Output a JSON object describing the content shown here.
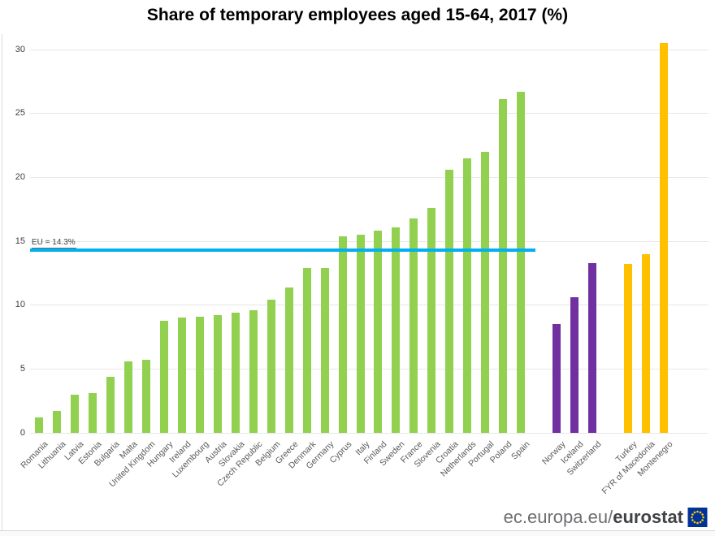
{
  "title": "Share of temporary employees aged 15-64, 2017 (%)",
  "chart_data": {
    "type": "bar",
    "ylim": [
      0,
      30
    ],
    "yticks": [
      0,
      5,
      10,
      15,
      20,
      25,
      30
    ],
    "grid": true,
    "reference_line": {
      "label": "EU = 14.3%",
      "value": 14.3,
      "color": "#00b0f0"
    },
    "groups": [
      {
        "key": "green-group",
        "color": "#92d050",
        "items": [
          {
            "label": "Romania",
            "value": 1.2
          },
          {
            "label": "Lithuania",
            "value": 1.7
          },
          {
            "label": "Latvia",
            "value": 3.0
          },
          {
            "label": "Estonia",
            "value": 3.1
          },
          {
            "label": "Bulgaria",
            "value": 4.4
          },
          {
            "label": "Malta",
            "value": 5.6
          },
          {
            "label": "United Kingdom",
            "value": 5.7
          },
          {
            "label": "Hungary",
            "value": 8.8
          },
          {
            "label": "Ireland",
            "value": 9.0
          },
          {
            "label": "Luxembourg",
            "value": 9.1
          },
          {
            "label": "Austria",
            "value": 9.2
          },
          {
            "label": "Slovakia",
            "value": 9.4
          },
          {
            "label": "Czech Republic",
            "value": 9.6
          },
          {
            "label": "Belgium",
            "value": 10.4
          },
          {
            "label": "Greece",
            "value": 11.4
          },
          {
            "label": "Denmark",
            "value": 12.9
          },
          {
            "label": "Germany",
            "value": 12.9
          },
          {
            "label": "Cyprus",
            "value": 15.4
          },
          {
            "label": "Italy",
            "value": 15.5
          },
          {
            "label": "Finland",
            "value": 15.8
          },
          {
            "label": "Sweden",
            "value": 16.1
          },
          {
            "label": "France",
            "value": 16.8
          },
          {
            "label": "Slovenia",
            "value": 17.6
          },
          {
            "label": "Croatia",
            "value": 20.6
          },
          {
            "label": "Netherlands",
            "value": 21.5
          },
          {
            "label": "Portugal",
            "value": 22.0
          },
          {
            "label": "Poland",
            "value": 26.1
          },
          {
            "label": "Spain",
            "value": 26.7
          }
        ]
      },
      {
        "key": "purple-group",
        "color": "#7030a0",
        "items": [
          {
            "label": "Norway",
            "value": 8.5
          },
          {
            "label": "Iceland",
            "value": 10.6
          },
          {
            "label": "Switzerland",
            "value": 13.3
          }
        ]
      },
      {
        "key": "orange-group",
        "color": "#ffc000",
        "items": [
          {
            "label": "Turkey",
            "value": 13.2
          },
          {
            "label": "FYR of Macedonia",
            "value": 14.0
          },
          {
            "label": "Montenegro",
            "value": 30.5
          }
        ]
      }
    ]
  },
  "footer": {
    "logo_prefix": "ec.europa.eu/",
    "logo_bold": "eurostat"
  },
  "colors": {
    "green_bars": "#92d050",
    "purple_bars": "#7030a0",
    "orange_bars": "#ffc000",
    "eu_line": "#00b0f0"
  }
}
